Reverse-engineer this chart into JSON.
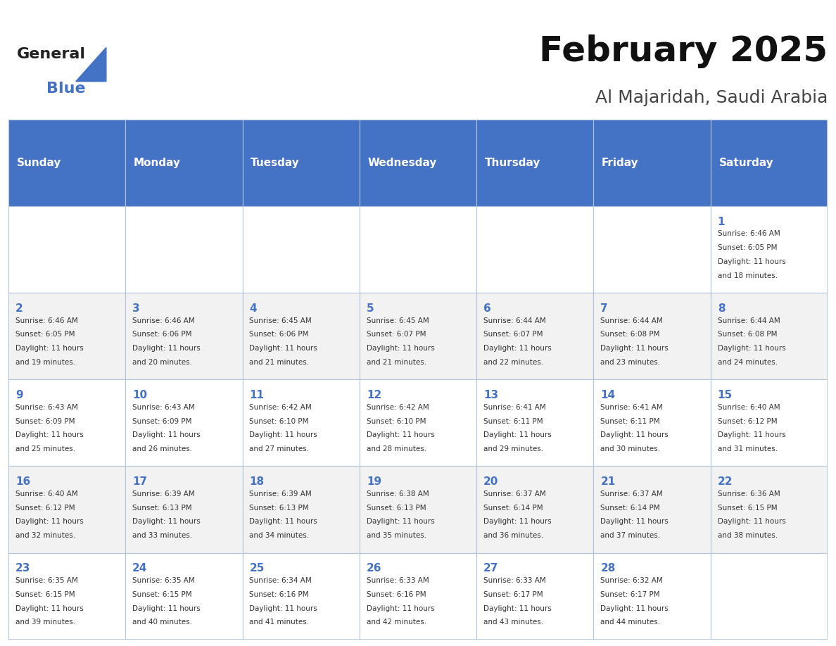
{
  "title": "February 2025",
  "subtitle": "Al Majaridah, Saudi Arabia",
  "header_bg": "#4472C4",
  "header_text_color": "#FFFFFF",
  "days_of_week": [
    "Sunday",
    "Monday",
    "Tuesday",
    "Wednesday",
    "Thursday",
    "Friday",
    "Saturday"
  ],
  "weeks": [
    [
      {
        "day": null,
        "sunrise": null,
        "sunset": null,
        "daylight": null
      },
      {
        "day": null,
        "sunrise": null,
        "sunset": null,
        "daylight": null
      },
      {
        "day": null,
        "sunrise": null,
        "sunset": null,
        "daylight": null
      },
      {
        "day": null,
        "sunrise": null,
        "sunset": null,
        "daylight": null
      },
      {
        "day": null,
        "sunrise": null,
        "sunset": null,
        "daylight": null
      },
      {
        "day": null,
        "sunrise": null,
        "sunset": null,
        "daylight": null
      },
      {
        "day": 1,
        "sunrise": "6:46 AM",
        "sunset": "6:05 PM",
        "daylight": "11 hours and 18 minutes."
      }
    ],
    [
      {
        "day": 2,
        "sunrise": "6:46 AM",
        "sunset": "6:05 PM",
        "daylight": "11 hours and 19 minutes."
      },
      {
        "day": 3,
        "sunrise": "6:46 AM",
        "sunset": "6:06 PM",
        "daylight": "11 hours and 20 minutes."
      },
      {
        "day": 4,
        "sunrise": "6:45 AM",
        "sunset": "6:06 PM",
        "daylight": "11 hours and 21 minutes."
      },
      {
        "day": 5,
        "sunrise": "6:45 AM",
        "sunset": "6:07 PM",
        "daylight": "11 hours and 21 minutes."
      },
      {
        "day": 6,
        "sunrise": "6:44 AM",
        "sunset": "6:07 PM",
        "daylight": "11 hours and 22 minutes."
      },
      {
        "day": 7,
        "sunrise": "6:44 AM",
        "sunset": "6:08 PM",
        "daylight": "11 hours and 23 minutes."
      },
      {
        "day": 8,
        "sunrise": "6:44 AM",
        "sunset": "6:08 PM",
        "daylight": "11 hours and 24 minutes."
      }
    ],
    [
      {
        "day": 9,
        "sunrise": "6:43 AM",
        "sunset": "6:09 PM",
        "daylight": "11 hours and 25 minutes."
      },
      {
        "day": 10,
        "sunrise": "6:43 AM",
        "sunset": "6:09 PM",
        "daylight": "11 hours and 26 minutes."
      },
      {
        "day": 11,
        "sunrise": "6:42 AM",
        "sunset": "6:10 PM",
        "daylight": "11 hours and 27 minutes."
      },
      {
        "day": 12,
        "sunrise": "6:42 AM",
        "sunset": "6:10 PM",
        "daylight": "11 hours and 28 minutes."
      },
      {
        "day": 13,
        "sunrise": "6:41 AM",
        "sunset": "6:11 PM",
        "daylight": "11 hours and 29 minutes."
      },
      {
        "day": 14,
        "sunrise": "6:41 AM",
        "sunset": "6:11 PM",
        "daylight": "11 hours and 30 minutes."
      },
      {
        "day": 15,
        "sunrise": "6:40 AM",
        "sunset": "6:12 PM",
        "daylight": "11 hours and 31 minutes."
      }
    ],
    [
      {
        "day": 16,
        "sunrise": "6:40 AM",
        "sunset": "6:12 PM",
        "daylight": "11 hours and 32 minutes."
      },
      {
        "day": 17,
        "sunrise": "6:39 AM",
        "sunset": "6:13 PM",
        "daylight": "11 hours and 33 minutes."
      },
      {
        "day": 18,
        "sunrise": "6:39 AM",
        "sunset": "6:13 PM",
        "daylight": "11 hours and 34 minutes."
      },
      {
        "day": 19,
        "sunrise": "6:38 AM",
        "sunset": "6:13 PM",
        "daylight": "11 hours and 35 minutes."
      },
      {
        "day": 20,
        "sunrise": "6:37 AM",
        "sunset": "6:14 PM",
        "daylight": "11 hours and 36 minutes."
      },
      {
        "day": 21,
        "sunrise": "6:37 AM",
        "sunset": "6:14 PM",
        "daylight": "11 hours and 37 minutes."
      },
      {
        "day": 22,
        "sunrise": "6:36 AM",
        "sunset": "6:15 PM",
        "daylight": "11 hours and 38 minutes."
      }
    ],
    [
      {
        "day": 23,
        "sunrise": "6:35 AM",
        "sunset": "6:15 PM",
        "daylight": "11 hours and 39 minutes."
      },
      {
        "day": 24,
        "sunrise": "6:35 AM",
        "sunset": "6:15 PM",
        "daylight": "11 hours and 40 minutes."
      },
      {
        "day": 25,
        "sunrise": "6:34 AM",
        "sunset": "6:16 PM",
        "daylight": "11 hours and 41 minutes."
      },
      {
        "day": 26,
        "sunrise": "6:33 AM",
        "sunset": "6:16 PM",
        "daylight": "11 hours and 42 minutes."
      },
      {
        "day": 27,
        "sunrise": "6:33 AM",
        "sunset": "6:17 PM",
        "daylight": "11 hours and 43 minutes."
      },
      {
        "day": 28,
        "sunrise": "6:32 AM",
        "sunset": "6:17 PM",
        "daylight": "11 hours and 44 minutes."
      },
      {
        "day": null,
        "sunrise": null,
        "sunset": null,
        "daylight": null
      }
    ]
  ],
  "cell_bg_even": "#FFFFFF",
  "cell_bg_odd": "#F2F2F2",
  "grid_color": "#B0C4DE",
  "day_num_color": "#4472C4",
  "text_color": "#333333",
  "logo_general_color": "#222222",
  "logo_blue_color": "#4472C4"
}
